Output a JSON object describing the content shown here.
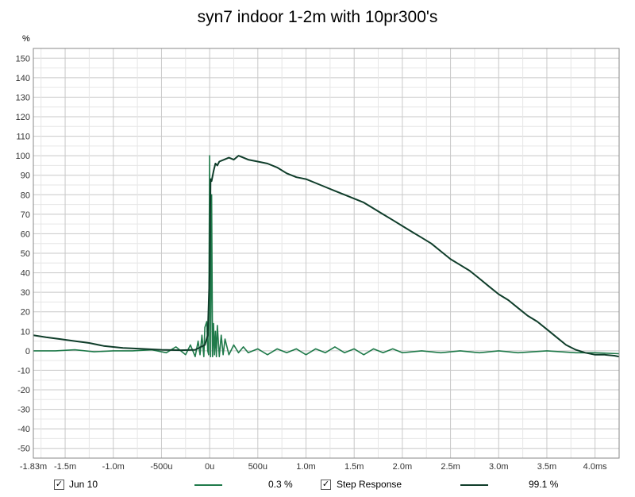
{
  "chart_data": {
    "type": "line",
    "title": "syn7 indoor 1-2m with 10pr300's",
    "ylabel": "%",
    "xlabel": "",
    "xlim_ms": [
      -1.83,
      4.25
    ],
    "ylim": [
      -55,
      155
    ],
    "grid": true,
    "y_ticks": [
      150,
      140,
      130,
      120,
      110,
      100,
      90,
      80,
      70,
      60,
      50,
      40,
      30,
      20,
      10,
      0,
      -10,
      -20,
      -30,
      -40,
      -50
    ],
    "x_ticks": [
      {
        "x": -1.83,
        "label": "-1.83m"
      },
      {
        "x": -1.5,
        "label": "-1.5m"
      },
      {
        "x": -1.0,
        "label": "-1.0m"
      },
      {
        "x": -0.5,
        "label": "-500u"
      },
      {
        "x": 0.0,
        "label": "0u"
      },
      {
        "x": 0.5,
        "label": "500u"
      },
      {
        "x": 1.0,
        "label": "1.0m"
      },
      {
        "x": 1.5,
        "label": "1.5m"
      },
      {
        "x": 2.0,
        "label": "2.0m"
      },
      {
        "x": 2.5,
        "label": "2.5m"
      },
      {
        "x": 3.0,
        "label": "3.0m"
      },
      {
        "x": 3.5,
        "label": "3.5m"
      },
      {
        "x": 4.0,
        "label": "4.0ms"
      }
    ],
    "series": [
      {
        "name": "Jun 10",
        "color": "#1f7a4a",
        "x": [
          -1.83,
          -1.6,
          -1.4,
          -1.2,
          -1.0,
          -0.8,
          -0.6,
          -0.45,
          -0.35,
          -0.25,
          -0.2,
          -0.15,
          -0.12,
          -0.1,
          -0.08,
          -0.06,
          -0.05,
          -0.03,
          -0.02,
          -0.01,
          0.0,
          0.005,
          0.01,
          0.02,
          0.03,
          0.04,
          0.05,
          0.06,
          0.07,
          0.08,
          0.1,
          0.12,
          0.14,
          0.16,
          0.2,
          0.25,
          0.3,
          0.35,
          0.4,
          0.5,
          0.6,
          0.7,
          0.8,
          0.9,
          1.0,
          1.1,
          1.2,
          1.3,
          1.4,
          1.5,
          1.6,
          1.7,
          1.8,
          1.9,
          2.0,
          2.2,
          2.4,
          2.6,
          2.8,
          3.0,
          3.2,
          3.5,
          3.8,
          4.0,
          4.25
        ],
        "y": [
          0,
          0,
          0.5,
          -0.5,
          0,
          0,
          0.5,
          -1,
          2,
          -2,
          3,
          -3,
          5,
          -2,
          8,
          -3,
          12,
          15,
          0,
          -2,
          100,
          40,
          -3,
          80,
          -3,
          14,
          -2,
          10,
          -3,
          13,
          -3,
          8,
          -2,
          6,
          -2,
          3,
          -1,
          2,
          -1,
          1,
          -2,
          1,
          -1,
          1,
          -2,
          1,
          -1,
          2,
          -1,
          1,
          -2,
          1,
          -1,
          1,
          -1,
          0,
          -1,
          0,
          -1,
          0,
          -1,
          0,
          -1,
          -1,
          -1.5
        ]
      },
      {
        "name": "Step Response",
        "color": "#0f3d2a",
        "x": [
          -1.83,
          -1.7,
          -1.55,
          -1.4,
          -1.25,
          -1.1,
          -0.9,
          -0.7,
          -0.5,
          -0.3,
          -0.15,
          -0.05,
          -0.02,
          0.0,
          0.01,
          0.02,
          0.04,
          0.06,
          0.08,
          0.1,
          0.15,
          0.2,
          0.25,
          0.3,
          0.35,
          0.4,
          0.5,
          0.6,
          0.7,
          0.8,
          0.9,
          1.0,
          1.1,
          1.2,
          1.3,
          1.4,
          1.5,
          1.6,
          1.7,
          1.8,
          1.9,
          2.0,
          2.1,
          2.2,
          2.3,
          2.4,
          2.5,
          2.6,
          2.7,
          2.8,
          2.9,
          3.0,
          3.1,
          3.2,
          3.3,
          3.4,
          3.5,
          3.6,
          3.7,
          3.8,
          3.9,
          4.0,
          4.1,
          4.2,
          4.25
        ],
        "y": [
          8,
          7,
          6,
          5,
          4,
          2.5,
          1.5,
          1,
          0.5,
          0.3,
          0.5,
          3,
          8,
          40,
          88,
          87,
          92,
          96,
          95,
          97,
          98,
          99,
          98,
          100,
          99,
          98,
          97,
          96,
          94,
          91,
          89,
          88,
          86,
          84,
          82,
          80,
          78,
          76,
          73,
          70,
          67,
          64,
          61,
          58,
          55,
          51,
          47,
          44,
          41,
          37,
          33,
          29,
          26,
          22,
          18,
          15,
          11,
          7,
          3,
          0.5,
          -1,
          -2,
          -2,
          -2.5,
          -3
        ]
      }
    ],
    "legend": {
      "placement": "bottom",
      "items": [
        {
          "label": "Jun 10",
          "value": "0.3 %",
          "checked": "✓",
          "color": "#1f7a4a"
        },
        {
          "label": "Step Response",
          "value": "99.1 %",
          "checked": "✓",
          "color": "#0f3d2a"
        }
      ]
    }
  }
}
